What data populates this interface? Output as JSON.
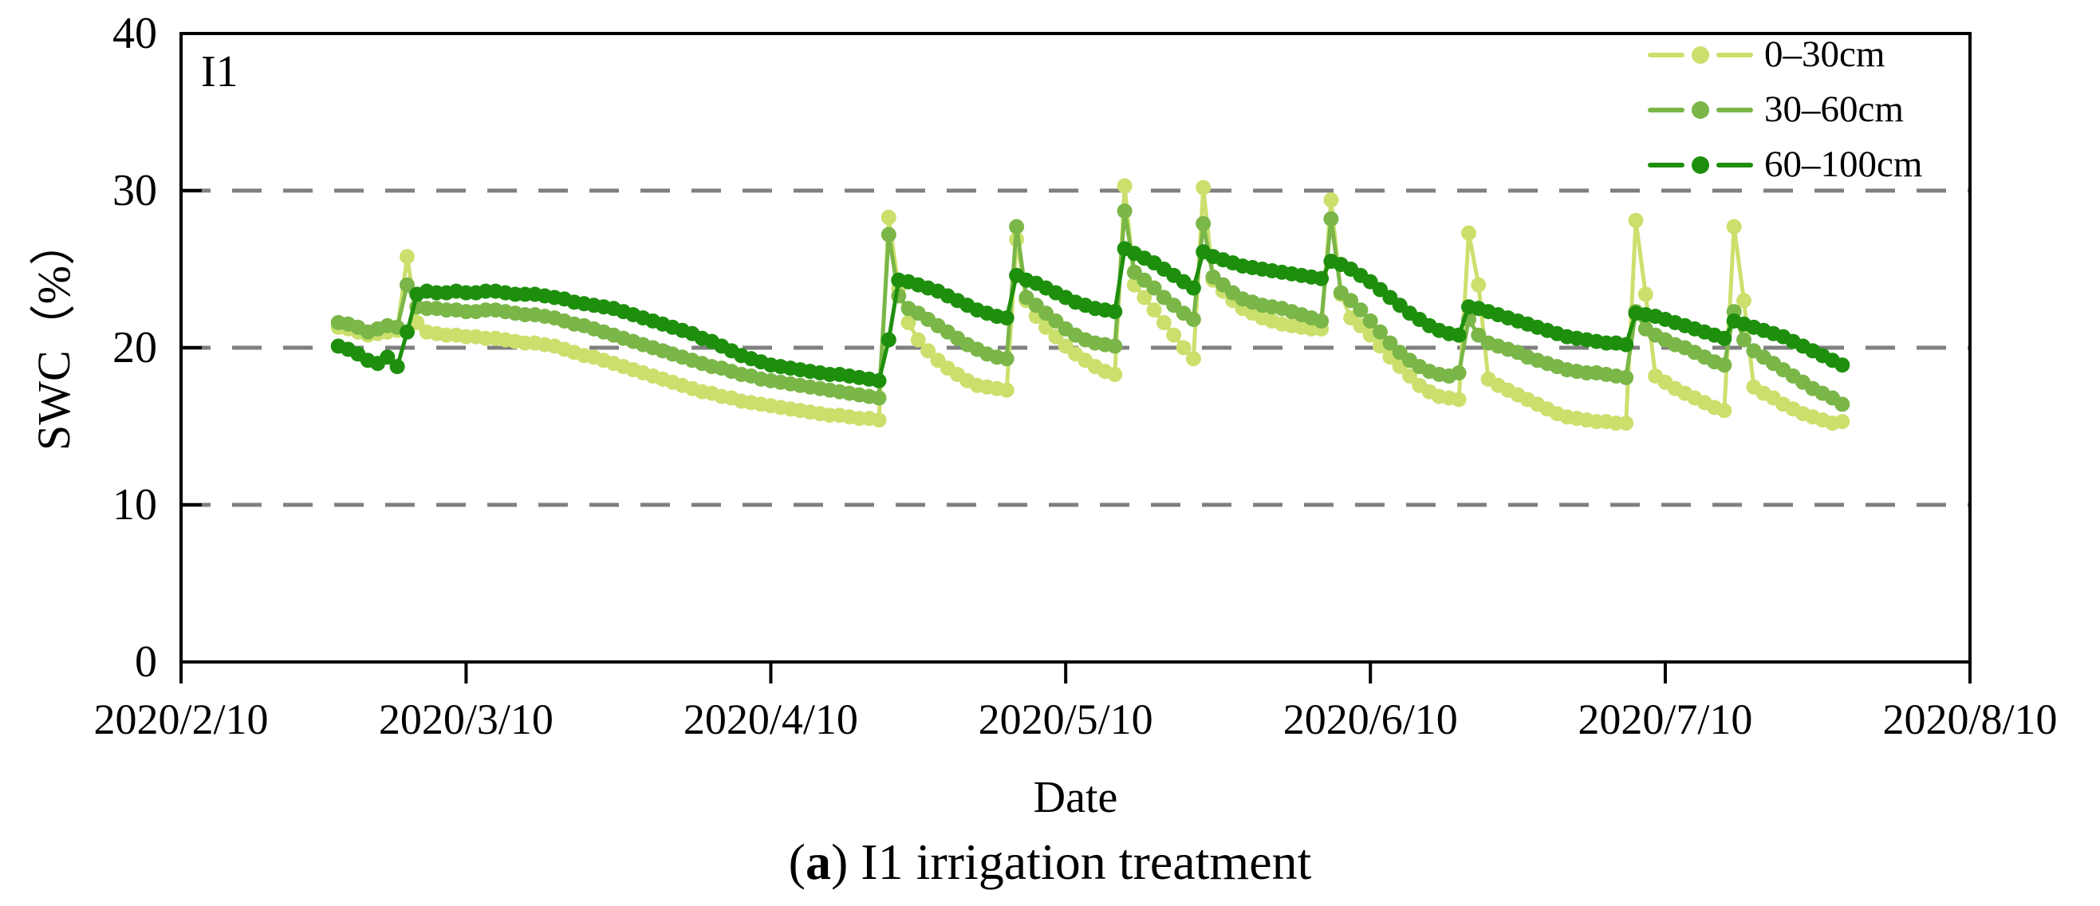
{
  "figure": {
    "panel_label": "I1",
    "caption": {
      "prefix": "(",
      "bold_letter": "a",
      "rest": ") I1 irrigation treatment"
    }
  },
  "chart_data": {
    "type": "line",
    "title": "",
    "xlabel": "Date",
    "ylabel": "SWC（%）",
    "ylim": [
      0,
      40
    ],
    "y_ticks": [
      0,
      10,
      20,
      30,
      40
    ],
    "gridlines_y": [
      10,
      20,
      30
    ],
    "grid_style": "dashed",
    "grid_color": "#7f7f7f",
    "axis_color": "#000000",
    "legend_position": "top-right-inside",
    "x_tick_labels": [
      "2020/2/10",
      "2020/3/10",
      "2020/4/10",
      "2020/5/10",
      "2020/6/10",
      "2020/7/10",
      "2020/8/10"
    ],
    "x_tick_day_offsets": [
      0,
      29,
      60,
      90,
      121,
      151,
      182
    ],
    "x_total_days": 182,
    "x_start_day_offset": 16,
    "x_start_date": "2020/2/26",
    "x_step": "daily",
    "series": [
      {
        "name": "0–30cm",
        "color": "#cbe06c",
        "values": [
          21.3,
          21.2,
          21.0,
          20.8,
          20.9,
          21.0,
          21.1,
          25.8,
          21.6,
          21.0,
          20.9,
          20.8,
          20.8,
          20.7,
          20.7,
          20.6,
          20.6,
          20.5,
          20.4,
          20.3,
          20.3,
          20.2,
          20.1,
          19.9,
          19.7,
          19.5,
          19.4,
          19.2,
          19.0,
          18.8,
          18.6,
          18.4,
          18.2,
          18.0,
          17.8,
          17.6,
          17.4,
          17.2,
          17.1,
          16.9,
          16.8,
          16.6,
          16.5,
          16.4,
          16.3,
          16.2,
          16.1,
          16.0,
          15.9,
          15.8,
          15.7,
          15.7,
          15.6,
          15.5,
          15.5,
          15.4,
          28.3,
          23.8,
          21.6,
          20.5,
          19.8,
          19.2,
          18.7,
          18.3,
          17.9,
          17.6,
          17.5,
          17.4,
          17.3,
          26.9,
          23.0,
          22.0,
          21.3,
          20.7,
          20.1,
          19.6,
          19.2,
          18.8,
          18.5,
          18.3,
          30.3,
          24.0,
          23.2,
          22.4,
          21.6,
          20.8,
          20.0,
          19.3,
          30.2,
          24.3,
          23.6,
          23.0,
          22.5,
          22.2,
          21.9,
          21.7,
          21.5,
          21.4,
          21.3,
          21.2,
          21.2,
          29.4,
          23.4,
          21.9,
          21.4,
          20.8,
          20.1,
          19.4,
          18.8,
          18.2,
          17.6,
          17.2,
          16.9,
          16.8,
          16.7,
          27.3,
          24.0,
          18.0,
          17.6,
          17.3,
          17.0,
          16.7,
          16.4,
          16.1,
          15.8,
          15.6,
          15.5,
          15.4,
          15.3,
          15.3,
          15.2,
          15.2,
          28.1,
          23.4,
          18.2,
          17.8,
          17.4,
          17.1,
          16.8,
          16.5,
          16.2,
          16.0,
          27.7,
          23.0,
          17.5,
          17.1,
          16.8,
          16.4,
          16.1,
          15.8,
          15.6,
          15.4,
          15.2,
          15.3
        ]
      },
      {
        "name": "30–60cm",
        "color": "#7ab648",
        "values": [
          21.6,
          21.5,
          21.3,
          21.0,
          21.2,
          21.4,
          21.3,
          24.0,
          22.6,
          22.5,
          22.5,
          22.4,
          22.4,
          22.3,
          22.3,
          22.4,
          22.4,
          22.3,
          22.2,
          22.1,
          22.1,
          22.0,
          21.9,
          21.7,
          21.5,
          21.4,
          21.2,
          21.0,
          20.8,
          20.6,
          20.4,
          20.2,
          20.0,
          19.8,
          19.6,
          19.4,
          19.2,
          19.0,
          18.8,
          18.7,
          18.5,
          18.3,
          18.2,
          18.0,
          17.9,
          17.8,
          17.7,
          17.6,
          17.5,
          17.4,
          17.3,
          17.2,
          17.1,
          17.0,
          16.9,
          16.8,
          27.2,
          23.3,
          22.5,
          22.2,
          21.8,
          21.4,
          21.0,
          20.6,
          20.2,
          19.9,
          19.6,
          19.4,
          19.3,
          27.7,
          23.2,
          22.7,
          22.2,
          21.7,
          21.2,
          20.8,
          20.5,
          20.3,
          20.2,
          20.1,
          28.7,
          24.8,
          24.3,
          23.8,
          23.2,
          22.7,
          22.2,
          21.8,
          27.9,
          24.5,
          24.0,
          23.5,
          23.1,
          22.9,
          22.7,
          22.6,
          22.5,
          22.3,
          22.1,
          21.9,
          21.7,
          28.2,
          23.5,
          23.0,
          22.4,
          21.7,
          21.0,
          20.3,
          19.7,
          19.2,
          18.8,
          18.5,
          18.3,
          18.2,
          18.4,
          21.8,
          20.8,
          20.3,
          20.1,
          19.9,
          19.7,
          19.4,
          19.2,
          19.0,
          18.8,
          18.6,
          18.5,
          18.4,
          18.4,
          18.3,
          18.2,
          18.1,
          22.3,
          21.2,
          20.8,
          20.5,
          20.2,
          20.0,
          19.7,
          19.4,
          19.1,
          18.9,
          22.3,
          20.5,
          19.8,
          19.4,
          19.0,
          18.6,
          18.2,
          17.8,
          17.4,
          17.1,
          16.8,
          16.4
        ]
      },
      {
        "name": "60–100cm",
        "color": "#1e8f0d",
        "values": [
          20.1,
          19.9,
          19.6,
          19.2,
          19.0,
          19.4,
          18.8,
          21.0,
          23.4,
          23.6,
          23.5,
          23.5,
          23.6,
          23.5,
          23.5,
          23.6,
          23.6,
          23.5,
          23.4,
          23.4,
          23.4,
          23.3,
          23.2,
          23.1,
          22.9,
          22.8,
          22.7,
          22.6,
          22.5,
          22.3,
          22.1,
          21.9,
          21.7,
          21.5,
          21.3,
          21.1,
          20.9,
          20.6,
          20.4,
          20.1,
          19.8,
          19.5,
          19.3,
          19.1,
          18.9,
          18.8,
          18.7,
          18.6,
          18.5,
          18.4,
          18.3,
          18.3,
          18.2,
          18.1,
          18.0,
          17.9,
          20.5,
          24.3,
          24.2,
          24.0,
          23.8,
          23.6,
          23.3,
          23.0,
          22.7,
          22.4,
          22.2,
          22.0,
          21.9,
          24.6,
          24.3,
          24.1,
          23.8,
          23.5,
          23.2,
          22.9,
          22.7,
          22.5,
          22.4,
          22.3,
          26.3,
          26.0,
          25.7,
          25.4,
          25.0,
          24.6,
          24.2,
          23.8,
          26.1,
          25.8,
          25.6,
          25.4,
          25.2,
          25.1,
          25.0,
          24.9,
          24.8,
          24.7,
          24.6,
          24.5,
          24.4,
          25.5,
          25.3,
          25.0,
          24.6,
          24.2,
          23.7,
          23.2,
          22.7,
          22.2,
          21.8,
          21.4,
          21.1,
          20.9,
          20.8,
          22.6,
          22.5,
          22.3,
          22.1,
          21.9,
          21.7,
          21.5,
          21.3,
          21.1,
          20.9,
          20.7,
          20.6,
          20.5,
          20.4,
          20.3,
          20.3,
          20.2,
          22.2,
          22.1,
          22.0,
          21.8,
          21.6,
          21.4,
          21.2,
          21.0,
          20.8,
          20.6,
          21.7,
          21.5,
          21.3,
          21.1,
          20.9,
          20.7,
          20.4,
          20.1,
          19.8,
          19.5,
          19.2,
          18.9
        ]
      }
    ]
  }
}
